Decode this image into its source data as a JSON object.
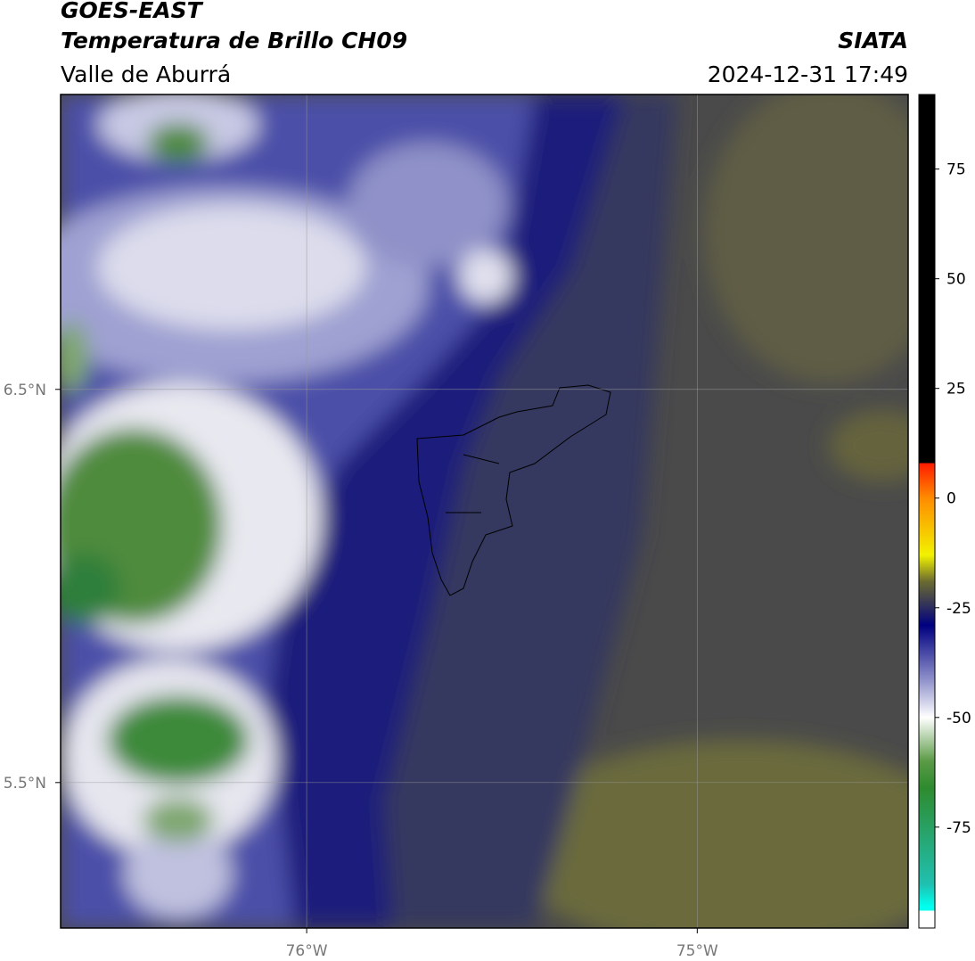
{
  "header": {
    "title": "GOES-EAST",
    "subtitle": "Temperatura de Brillo CH09",
    "region": "Valle de Aburrá",
    "source": "SIATA",
    "timestamp": "2024-12-31 17:49"
  },
  "map": {
    "xlim": [
      -76.63,
      -74.46
    ],
    "ylim": [
      5.13,
      7.25
    ],
    "xticks": [
      {
        "value": -76,
        "label": "76°W"
      },
      {
        "value": -75,
        "label": "75°W"
      }
    ],
    "yticks": [
      {
        "value": 6.5,
        "label": "6.5°N"
      },
      {
        "value": 5.5,
        "label": "5.5°N"
      }
    ],
    "grid": true
  },
  "colorbar": {
    "lim": [
      -98,
      92
    ],
    "ticks": [
      75,
      50,
      25,
      0,
      -25,
      -50,
      -75
    ],
    "stops": [
      {
        "value": 92,
        "color": "#000000"
      },
      {
        "value": 8,
        "color": "#000000"
      },
      {
        "value": 8,
        "color": "#ff1a00"
      },
      {
        "value": 0,
        "color": "#ff8c00"
      },
      {
        "value": -13,
        "color": "#f2f200"
      },
      {
        "value": -19,
        "color": "#6b6b30"
      },
      {
        "value": -29,
        "color": "#000080"
      },
      {
        "value": -41,
        "color": "#8a8cc8"
      },
      {
        "value": -50,
        "color": "#ffffff"
      },
      {
        "value": -60,
        "color": "#5a9a45"
      },
      {
        "value": -66,
        "color": "#2e8b2e"
      },
      {
        "value": -88,
        "color": "#20c0b0"
      },
      {
        "value": -93,
        "color": "#00ffee"
      },
      {
        "value": -94,
        "color": "#00ffee"
      },
      {
        "value": -94,
        "color": "#ffffff"
      },
      {
        "value": -98,
        "color": "#ffffff"
      }
    ]
  }
}
